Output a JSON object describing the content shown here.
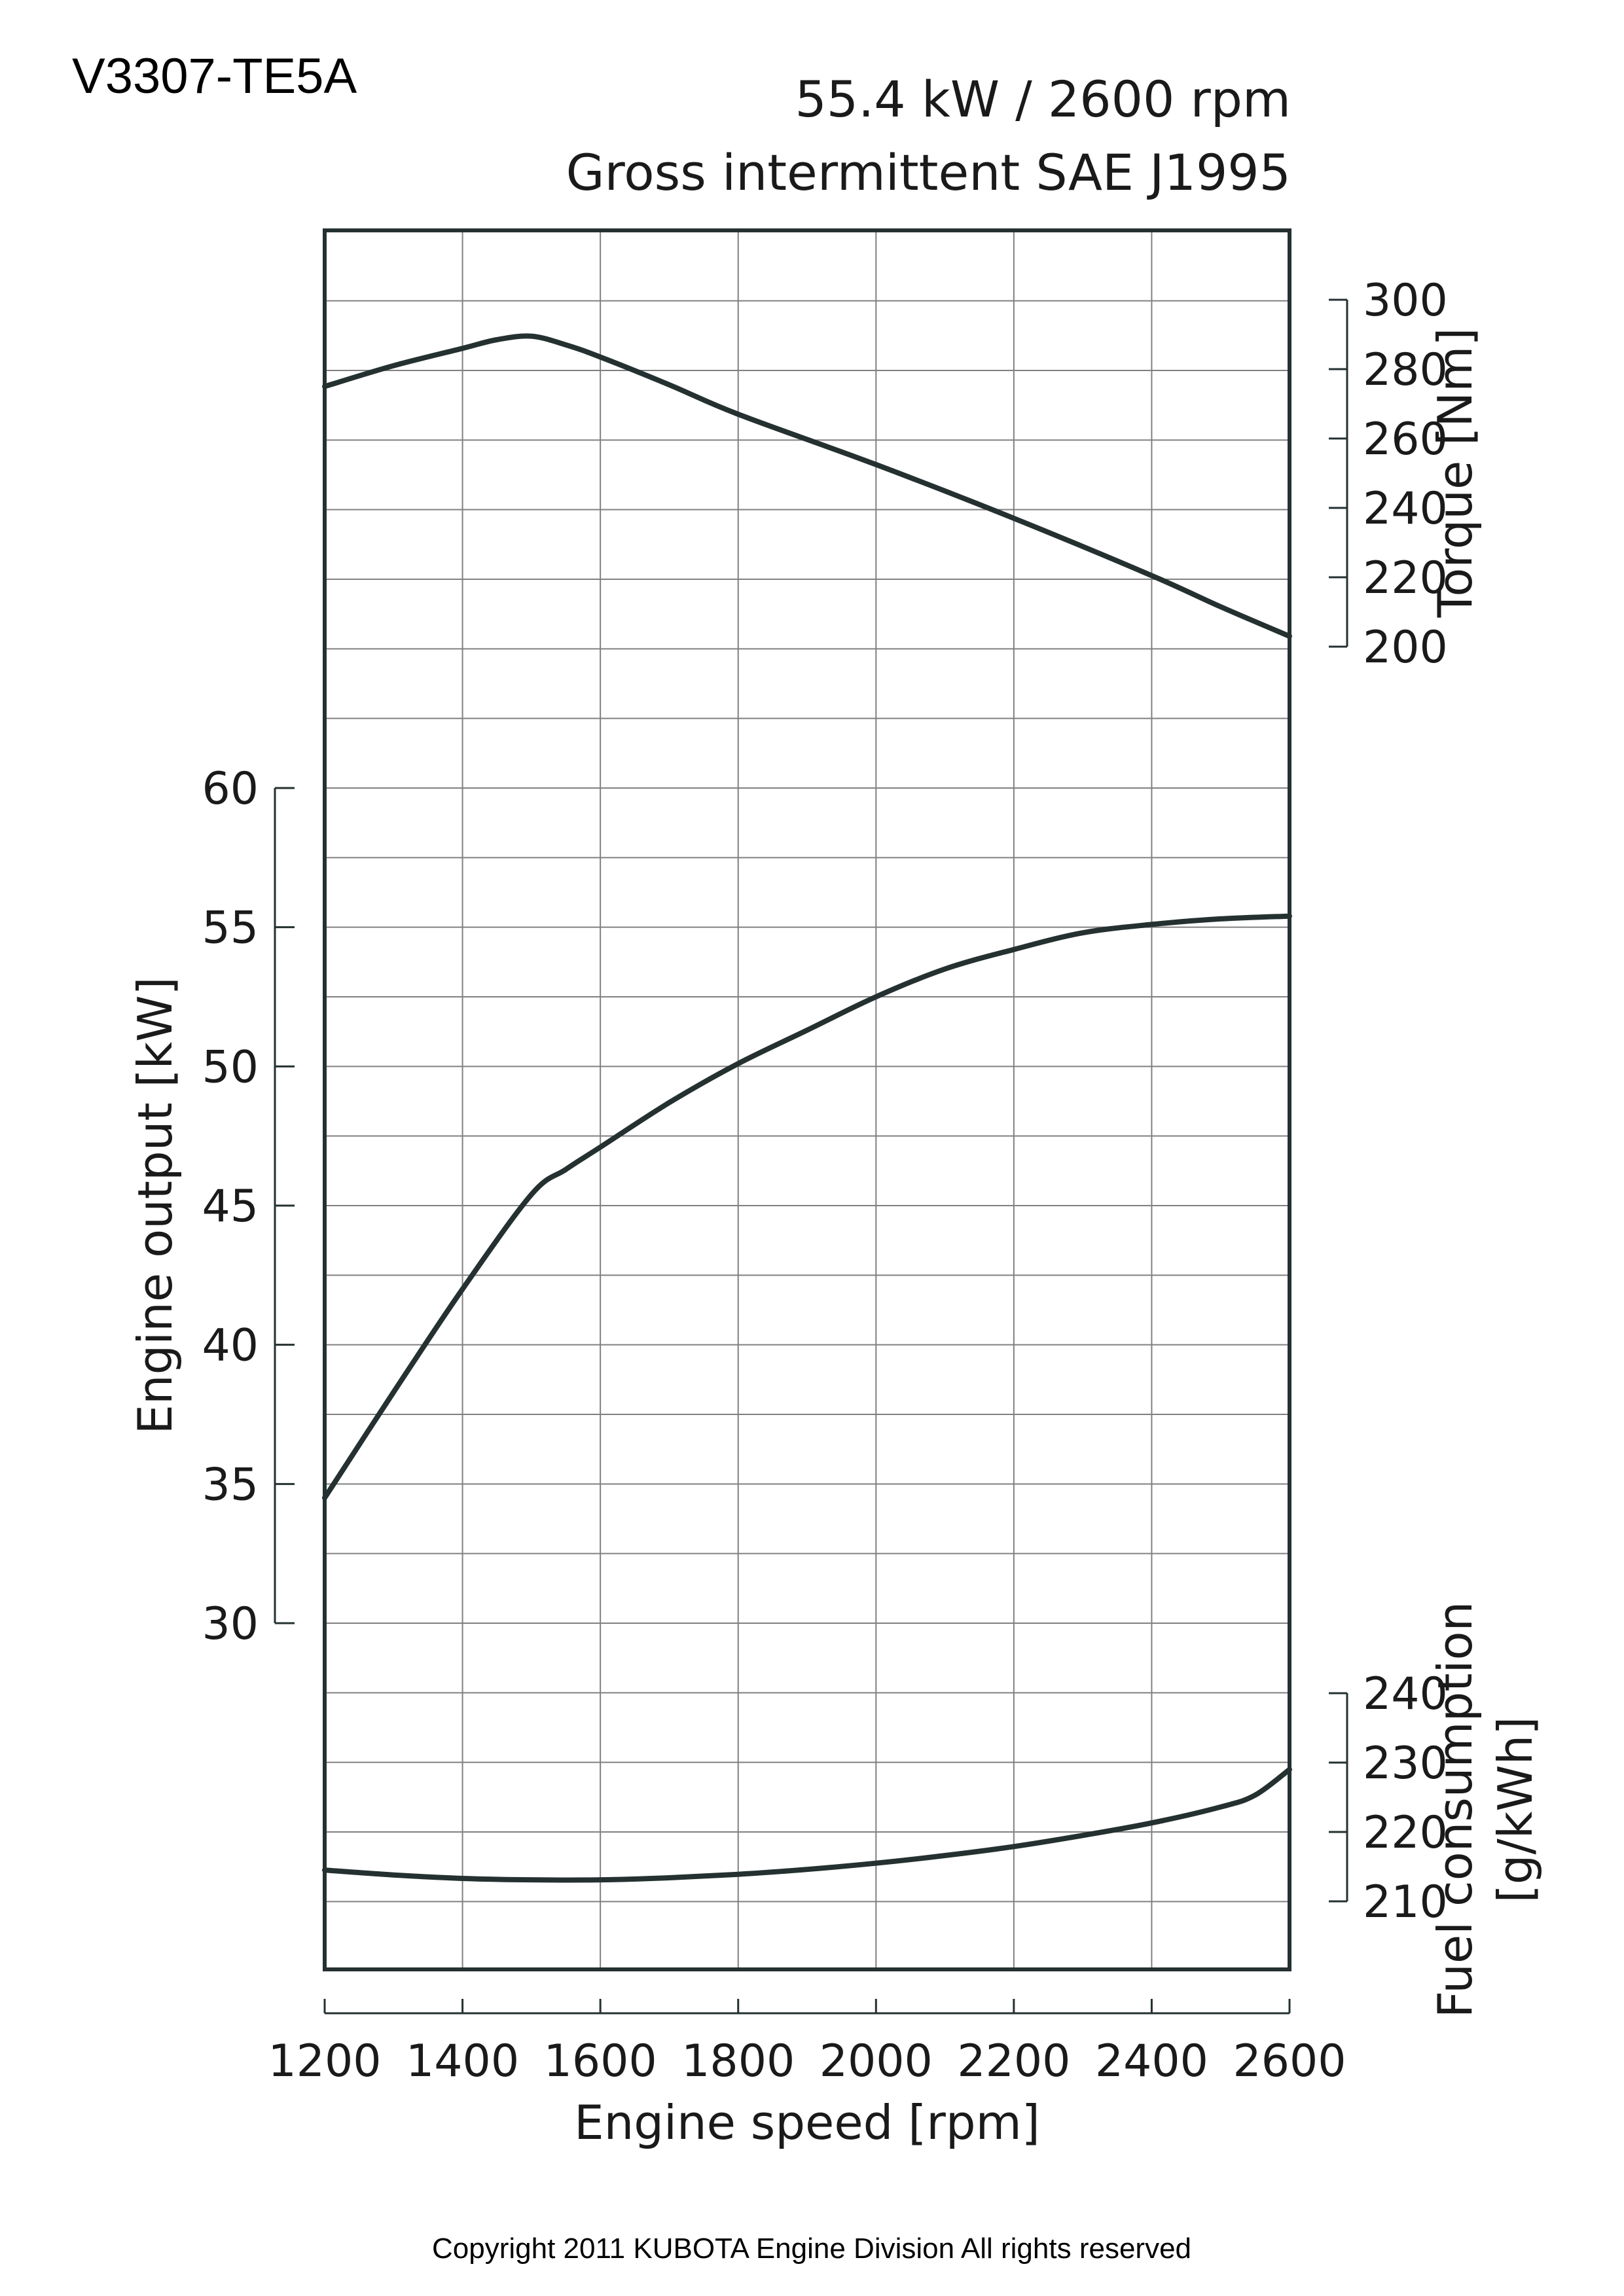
{
  "model": "V3307-TE5A",
  "header": {
    "line1": "55.4 kW / 2600 rpm",
    "line2": "Gross intermittent SAE J1995"
  },
  "copyright": "Copyright 2011 KUBOTA Engine Division All rights reserved",
  "colors": {
    "curve": "#243130",
    "grid": "#808080",
    "frame": "#243130"
  },
  "chart_data": {
    "type": "line",
    "x": {
      "label": "Engine speed [rpm]",
      "range": [
        1200,
        2600
      ],
      "ticks": [
        1200,
        1400,
        1600,
        1800,
        2000,
        2200,
        2400,
        2600
      ],
      "tick_labels": [
        "1200",
        "1400",
        "1600",
        "1800",
        "2000",
        "2200",
        "2400",
        "2600"
      ]
    },
    "axes": {
      "torque": {
        "label": "Torque [Nm]",
        "range": [
          200,
          300
        ],
        "ticks": [
          200,
          220,
          240,
          260,
          280,
          300
        ],
        "tick_labels": [
          "200",
          "220",
          "240",
          "260",
          "280",
          "300"
        ],
        "side": "right"
      },
      "output": {
        "label": "Engine output [kW]",
        "range": [
          30,
          60
        ],
        "ticks": [
          30,
          35,
          40,
          45,
          50,
          55,
          60
        ],
        "tick_labels": [
          "30",
          "35",
          "40",
          "45",
          "50",
          "55",
          "60"
        ],
        "side": "left"
      },
      "fuel": {
        "label_line1": "Fuel consumption",
        "label_line2": "[g/kWh]",
        "range": [
          210,
          240
        ],
        "ticks": [
          210,
          220,
          230,
          240
        ],
        "tick_labels": [
          "210",
          "220",
          "230",
          "240"
        ],
        "side": "right"
      }
    },
    "grid": true,
    "series": [
      {
        "axis": "torque",
        "x": [
          1200,
          1300,
          1400,
          1450,
          1500,
          1550,
          1600,
          1700,
          1800,
          2000,
          2200,
          2400,
          2500,
          2600
        ],
        "values": [
          275,
          281,
          286,
          288.5,
          289.5,
          287,
          283.5,
          275.5,
          267,
          252.5,
          237,
          220.5,
          211.5,
          203
        ]
      },
      {
        "axis": "output",
        "x": [
          1200,
          1300,
          1400,
          1500,
          1550,
          1600,
          1700,
          1800,
          1900,
          2000,
          2100,
          2200,
          2300,
          2400,
          2500,
          2600
        ],
        "values": [
          34.5,
          38.3,
          42,
          45.4,
          46.3,
          47.1,
          48.7,
          50.1,
          51.3,
          52.5,
          53.5,
          54.2,
          54.8,
          55.1,
          55.3,
          55.4
        ]
      },
      {
        "axis": "fuel",
        "x": [
          1200,
          1300,
          1400,
          1500,
          1600,
          1700,
          1800,
          1900,
          2000,
          2100,
          2200,
          2300,
          2400,
          2500,
          2550,
          2600
        ],
        "values": [
          214.5,
          213.8,
          213.3,
          213.1,
          213.1,
          213.4,
          213.9,
          214.6,
          215.5,
          216.6,
          217.9,
          219.5,
          221.3,
          223.6,
          225.3,
          229
        ]
      }
    ]
  }
}
